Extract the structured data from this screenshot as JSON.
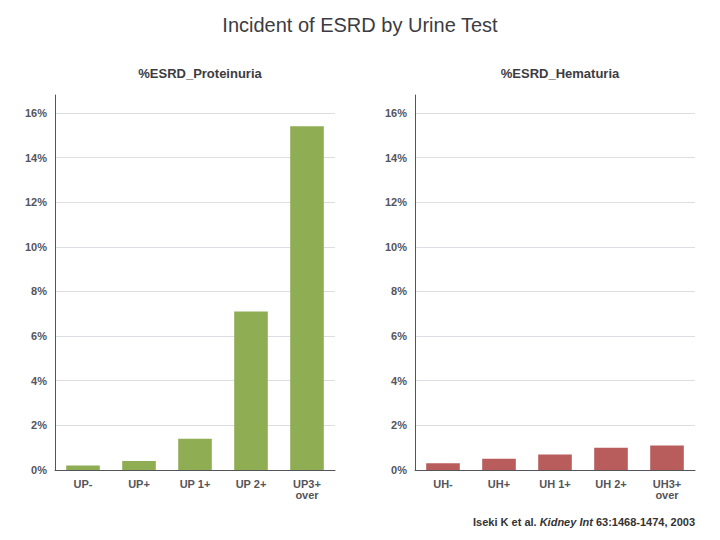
{
  "title": "Incident of ESRD by Urine Test",
  "annotations": [
    "Iseki K et al.",
    " Kidney Int",
    " 63:1468-1474, 2003"
  ],
  "chart_data": [
    {
      "type": "bar",
      "title": "%ESRD_Proteinuria",
      "categories": [
        "UP-",
        "UP+",
        "UP 1+",
        "UP 2+",
        "UP3+\nover"
      ],
      "values": [
        0.002,
        0.004,
        0.014,
        0.071,
        0.154
      ],
      "color": "#8fad52",
      "ylim": [
        0,
        0.168
      ],
      "yticks": [
        {
          "value": 0.0,
          "label": "0%"
        },
        {
          "value": 0.02,
          "label": "2%"
        },
        {
          "value": 0.04,
          "label": "4%"
        },
        {
          "value": 0.06,
          "label": "6%"
        },
        {
          "value": 0.08,
          "label": "8%"
        },
        {
          "value": 0.1,
          "label": "10%"
        },
        {
          "value": 0.12,
          "label": "12%"
        },
        {
          "value": 0.14,
          "label": "14%"
        },
        {
          "value": 0.16,
          "label": "16%"
        }
      ],
      "grid": true
    },
    {
      "type": "bar",
      "title": "%ESRD_Hematuria",
      "categories": [
        "UH-",
        "UH+",
        "UH 1+",
        "UH 2+",
        "UH3+\nover"
      ],
      "values": [
        0.003,
        0.005,
        0.007,
        0.01,
        0.011
      ],
      "color": "#b85c5c",
      "ylim": [
        0,
        0.168
      ],
      "yticks": [
        {
          "value": 0.0,
          "label": "0%"
        },
        {
          "value": 0.02,
          "label": "2%"
        },
        {
          "value": 0.04,
          "label": "4%"
        },
        {
          "value": 0.06,
          "label": "6%"
        },
        {
          "value": 0.08,
          "label": "8%"
        },
        {
          "value": 0.1,
          "label": "10%"
        },
        {
          "value": 0.12,
          "label": "12%"
        },
        {
          "value": 0.14,
          "label": "14%"
        },
        {
          "value": 0.16,
          "label": "16%"
        }
      ],
      "grid": true
    }
  ]
}
